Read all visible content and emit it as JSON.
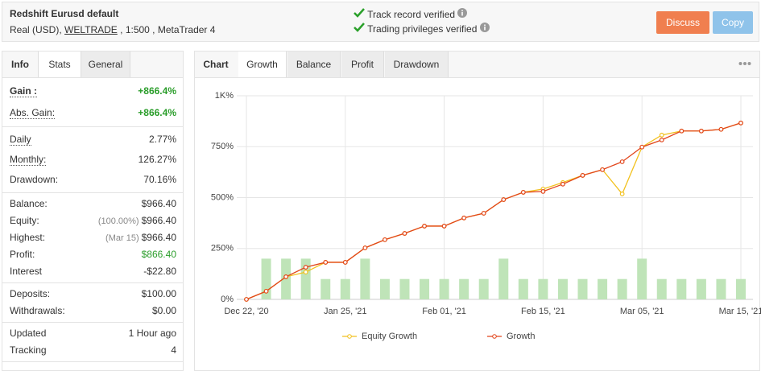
{
  "header": {
    "title": "Redshift Eurusd default",
    "subtitle": [
      "Real (USD), ",
      "WELTRADE",
      " , 1:500 , MetaTrader 4"
    ],
    "verified": [
      "Track record verified",
      "Trading privileges verified"
    ],
    "buttons": [
      "Discuss",
      "Copy"
    ]
  },
  "left_tabs": [
    "Info",
    "Stats",
    "General"
  ],
  "stats": [
    [
      {
        "label": "Gain :",
        "value": "+866.4%",
        "color": "#2a9d2a"
      },
      {
        "label": "Abs. Gain:",
        "value": "+866.4%",
        "color": "#2a9d2a"
      }
    ],
    [
      {
        "label": "Daily",
        "value": "2.77%"
      },
      {
        "label": "Monthly:",
        "value": "126.27%"
      },
      {
        "label": "Drawdown:",
        "value": "70.16%"
      }
    ],
    [
      {
        "label": "Balance:",
        "value": "$966.40"
      },
      {
        "label": "Equity:",
        "note": "(100.00%)",
        "value": "$966.40"
      },
      {
        "label": "Highest:",
        "note": "(Mar 15)",
        "value": "$966.40"
      },
      {
        "label": "Profit:",
        "value": "$866.40",
        "color": "#2a9d2a"
      },
      {
        "label": "Interest",
        "value": "-$22.80"
      }
    ],
    [
      {
        "label": "Deposits:",
        "value": "$100.00"
      },
      {
        "label": "Withdrawals:",
        "value": "$0.00"
      }
    ],
    [
      {
        "label": "Updated",
        "value": "1 Hour ago"
      },
      {
        "label": "Tracking",
        "value": "4"
      }
    ]
  ],
  "right_tabs": {
    "label": "Chart",
    "tabs": [
      "Growth",
      "Balance",
      "Profit",
      "Drawdown"
    ]
  },
  "chart_data": {
    "type": "line",
    "categories": [
      "Dec 22, '20",
      null,
      null,
      null,
      null,
      "Jan 25, '21",
      null,
      null,
      null,
      null,
      "Feb 01, '21",
      null,
      null,
      null,
      null,
      "Feb 15, '21",
      null,
      null,
      null,
      null,
      "Mar 05, '21",
      null,
      null,
      null,
      null,
      "Mar 15, '21"
    ],
    "series": [
      {
        "type": "bar",
        "color": "#bfe4b8",
        "values": [
          null,
          200,
          200,
          200,
          100,
          100,
          200,
          100,
          100,
          100,
          100,
          100,
          100,
          200,
          100,
          100,
          100,
          100,
          100,
          100,
          200,
          100,
          100,
          100,
          100,
          100
        ]
      },
      {
        "name": "Equity Growth",
        "color": "#f2c11e",
        "values": [
          0,
          40,
          111,
          134,
          182,
          182,
          253,
          293,
          324,
          360,
          360,
          400,
          423,
          490,
          526,
          542,
          574,
          609,
          637,
          518,
          748,
          807,
          827,
          827,
          835,
          866.4
        ]
      },
      {
        "name": "Growth",
        "color": "#e2461c",
        "values": [
          0,
          40,
          111,
          158,
          182,
          182,
          253,
          293,
          324,
          360,
          360,
          400,
          423,
          490,
          526,
          530,
          566,
          609,
          637,
          676,
          748,
          783,
          827,
          827,
          835,
          866.4
        ]
      }
    ],
    "ylim": [
      0,
      1000
    ],
    "yticks": [
      {
        "value": 0,
        "label": "0%"
      },
      {
        "value": 250,
        "label": "250%"
      },
      {
        "value": 500,
        "label": "500%"
      },
      {
        "value": 750,
        "label": "750%"
      },
      {
        "value": 1000,
        "label": "1K%"
      }
    ],
    "grid": true,
    "legend": "bottom"
  }
}
